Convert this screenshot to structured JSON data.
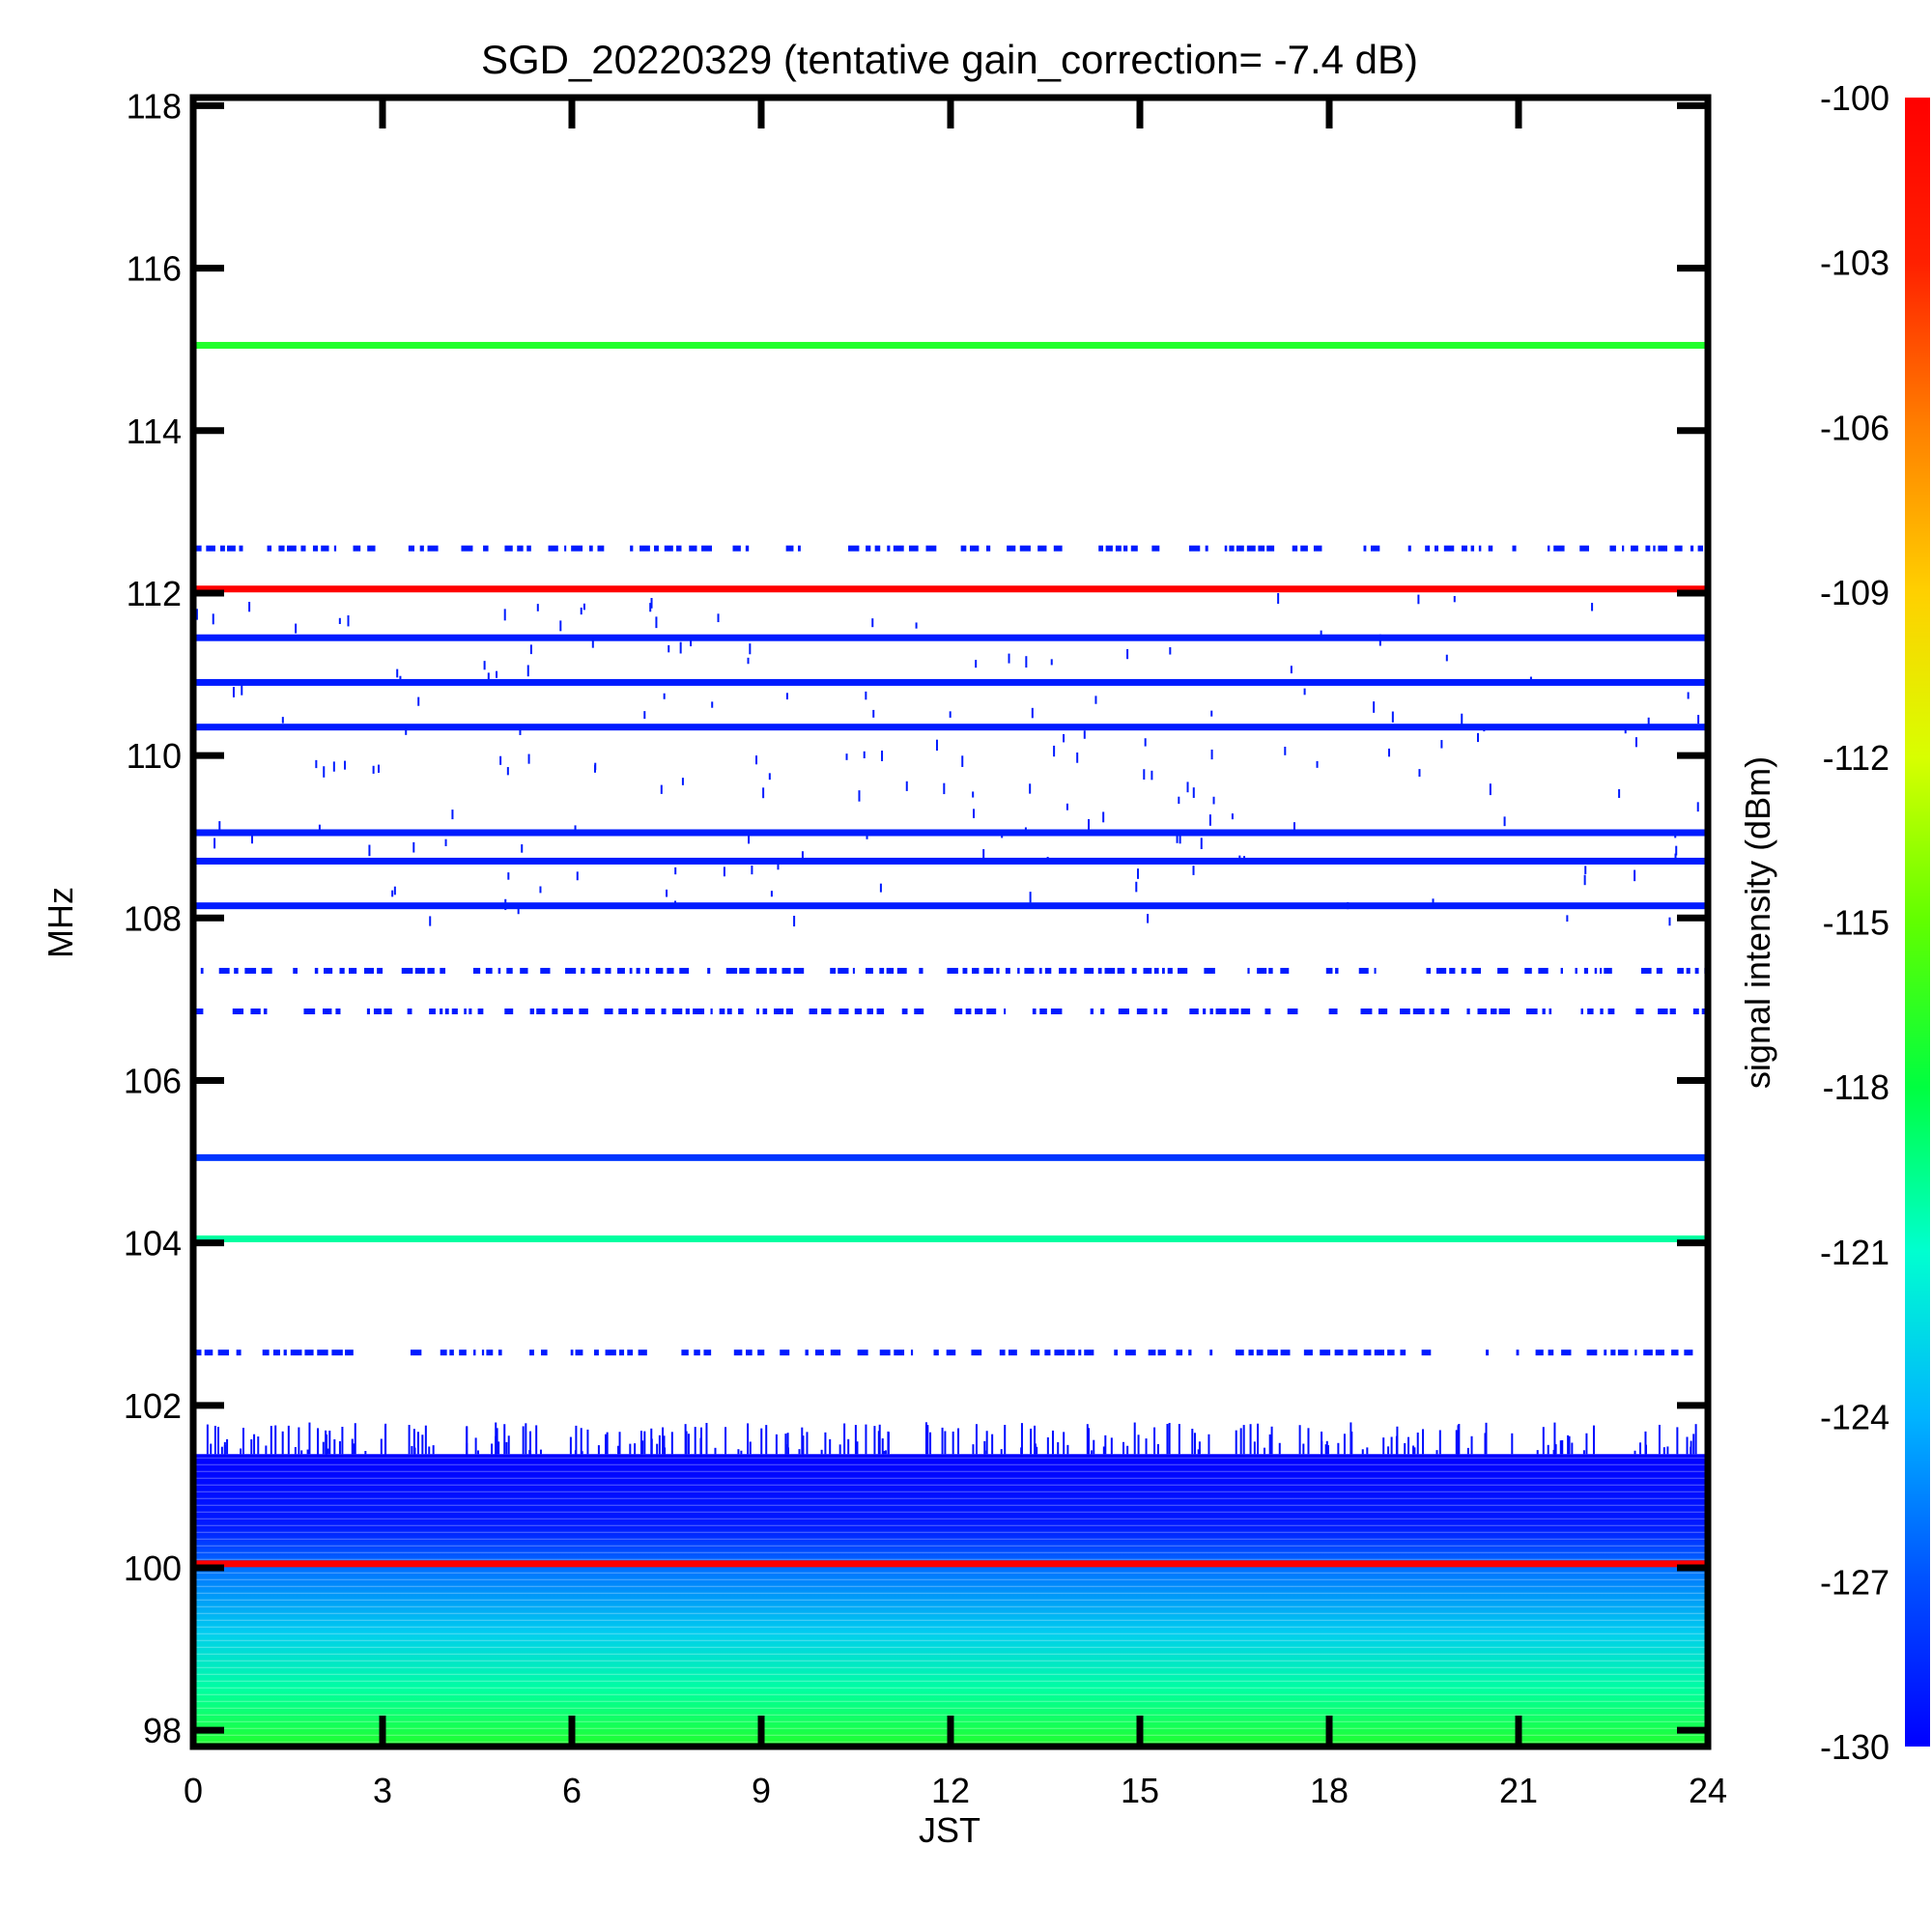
{
  "chart_data": {
    "type": "heatmap",
    "title": "SGD_20220329 (tentative gain_correction= -7.4 dB)",
    "xlabel": "JST",
    "ylabel": "MHz",
    "colorbar_label": "signal intensity (dBm)",
    "xlim": [
      0,
      24
    ],
    "ylim": [
      97.8,
      118.1
    ],
    "clim": [
      -130,
      -100
    ],
    "x_ticks": [
      "0",
      "3",
      "6",
      "9",
      "12",
      "15",
      "18",
      "21",
      "24"
    ],
    "y_ticks": [
      "98",
      "100",
      "102",
      "104",
      "106",
      "108",
      "110",
      "112",
      "114",
      "116",
      "118"
    ],
    "colorbar_ticks": [
      "-100",
      "-103",
      "-106",
      "-109",
      "-112",
      "-115",
      "-118",
      "-121",
      "-124",
      "-127",
      "-130"
    ],
    "colormap": [
      "#0000ff",
      "#0050ff",
      "#00b4ff",
      "#00ffd0",
      "#00ff40",
      "#60ff00",
      "#d8ff00",
      "#ffd000",
      "#ff8000",
      "#ff2000",
      "#ff0000"
    ],
    "grid": false,
    "continuous_bands": [
      {
        "freq_mhz": 115.05,
        "dbm": -117
      },
      {
        "freq_mhz": 112.05,
        "dbm": -100
      },
      {
        "freq_mhz": 111.45,
        "dbm": -129
      },
      {
        "freq_mhz": 110.9,
        "dbm": -129
      },
      {
        "freq_mhz": 110.35,
        "dbm": -129
      },
      {
        "freq_mhz": 109.05,
        "dbm": -129
      },
      {
        "freq_mhz": 108.7,
        "dbm": -129
      },
      {
        "freq_mhz": 108.15,
        "dbm": -129
      },
      {
        "freq_mhz": 105.05,
        "dbm": -128
      },
      {
        "freq_mhz": 104.05,
        "dbm": -120
      },
      {
        "freq_mhz": 100.05,
        "dbm": -100
      }
    ],
    "intermittent_bands": [
      {
        "freq_mhz": 112.55,
        "dbm": -129
      },
      {
        "freq_mhz": 107.35,
        "dbm": -129
      },
      {
        "freq_mhz": 106.85,
        "dbm": -129
      },
      {
        "freq_mhz": 102.65,
        "dbm": -129
      }
    ],
    "noise_floor_gradient": [
      {
        "freq_mhz": 101.4,
        "dbm": -130
      },
      {
        "freq_mhz": 100.5,
        "dbm": -129
      },
      {
        "freq_mhz": 100.0,
        "dbm": -126
      },
      {
        "freq_mhz": 99.2,
        "dbm": -123
      },
      {
        "freq_mhz": 98.5,
        "dbm": -120
      },
      {
        "freq_mhz": 97.8,
        "dbm": -117
      }
    ]
  }
}
